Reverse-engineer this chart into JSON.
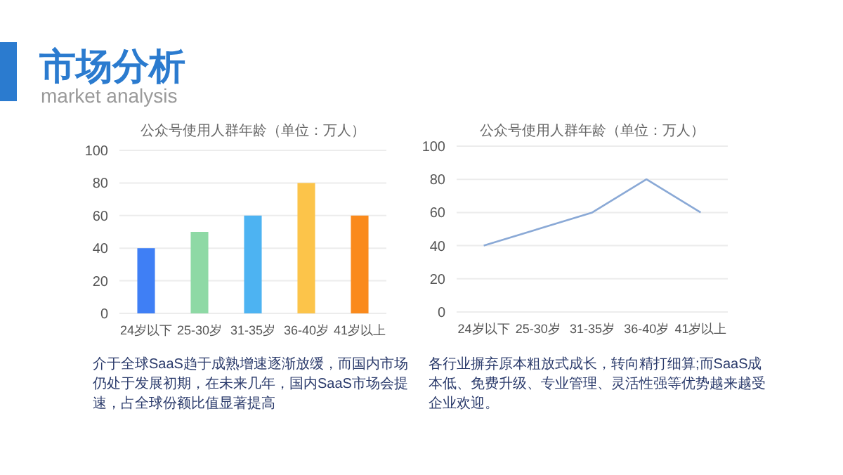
{
  "chart_data": [
    {
      "type": "other",
      "title": "市场分析",
      "subtitle": "market analysis"
    },
    {
      "type": "bar",
      "title": "公众号使用人群年龄（单位：万人）",
      "categories": [
        "24岁以下",
        "25-30岁",
        "31-35岁",
        "36-40岁",
        "41岁以上"
      ],
      "values": [
        40,
        50,
        60,
        80,
        60
      ],
      "colors": [
        "#3f7ff5",
        "#8ed9a5",
        "#4db3f2",
        "#fcc44a",
        "#fa8a1c"
      ],
      "ylim": [
        0,
        100
      ],
      "yticks": [
        0,
        20,
        40,
        60,
        80,
        100
      ],
      "grid": "y",
      "annotations": [
        "介于全球SaaS趋于成熟增速逐渐放缓，而国内市场仍处于发展初期，在未来几年，国内SaaS市场会提速，占全球份额比值显著提高"
      ]
    },
    {
      "type": "line",
      "title": "公众号使用人群年龄（单位：万人）",
      "categories": [
        "24岁以下",
        "25-30岁",
        "31-35岁",
        "36-40岁",
        "41岁以上"
      ],
      "series": [
        {
          "color": "#8aa9d6",
          "values": [
            40,
            50,
            60,
            80,
            60
          ]
        }
      ],
      "ylim": [
        0,
        100
      ],
      "yticks": [
        0,
        20,
        40,
        60,
        80,
        100
      ],
      "grid": "y",
      "annotations": [
        "各行业摒弃原本粗放式成长，转向精打细算;而SaaS成本低、免费升级、专业管理、灵活性强等优势越来越受企业欢迎。"
      ]
    }
  ]
}
